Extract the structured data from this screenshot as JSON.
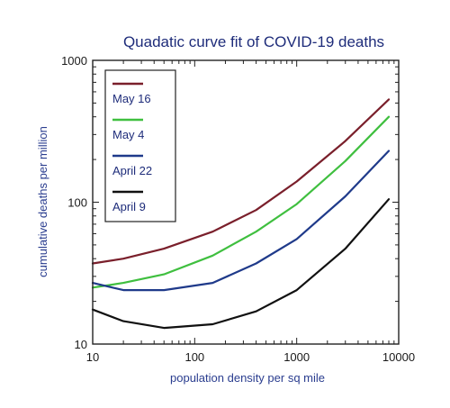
{
  "chart_data": {
    "type": "line",
    "title": "Quadatic curve fit of COVID-19 deaths",
    "xlabel": "population density per sq mile",
    "ylabel": "cumulative deaths per million",
    "xscale": "log",
    "yscale": "log",
    "xlim": [
      10,
      10000
    ],
    "ylim": [
      10,
      1000
    ],
    "x_ticks": [
      {
        "value": 10,
        "label": "10"
      },
      {
        "value": 100,
        "label": "100"
      },
      {
        "value": 1000,
        "label": "1000"
      },
      {
        "value": 10000,
        "label": "10000"
      }
    ],
    "y_ticks": [
      {
        "value": 10,
        "label": "10"
      },
      {
        "value": 100,
        "label": "100"
      },
      {
        "value": 1000,
        "label": "1000"
      }
    ],
    "legend_position": "top-left",
    "grid": false,
    "series": [
      {
        "name": "May 16",
        "color": "#7a1f2b",
        "x": [
          10,
          20,
          50,
          150,
          400,
          1000,
          3000,
          8000
        ],
        "y": [
          37,
          40,
          47,
          62,
          88,
          140,
          270,
          530
        ]
      },
      {
        "name": "May 4",
        "color": "#3fbf3f",
        "x": [
          10,
          20,
          50,
          150,
          400,
          1000,
          3000,
          8000
        ],
        "y": [
          25,
          27,
          31,
          42,
          62,
          97,
          195,
          400
        ]
      },
      {
        "name": "April 22",
        "color": "#1f3a8a",
        "x": [
          10,
          20,
          50,
          150,
          400,
          1000,
          3000,
          8000
        ],
        "y": [
          27,
          24,
          24,
          27,
          37,
          55,
          110,
          230
        ]
      },
      {
        "name": "April 9",
        "color": "#111111",
        "x": [
          10,
          20,
          50,
          150,
          400,
          1000,
          3000,
          8000
        ],
        "y": [
          17.5,
          14.5,
          13,
          13.8,
          17,
          24,
          47,
          105
        ]
      }
    ]
  }
}
